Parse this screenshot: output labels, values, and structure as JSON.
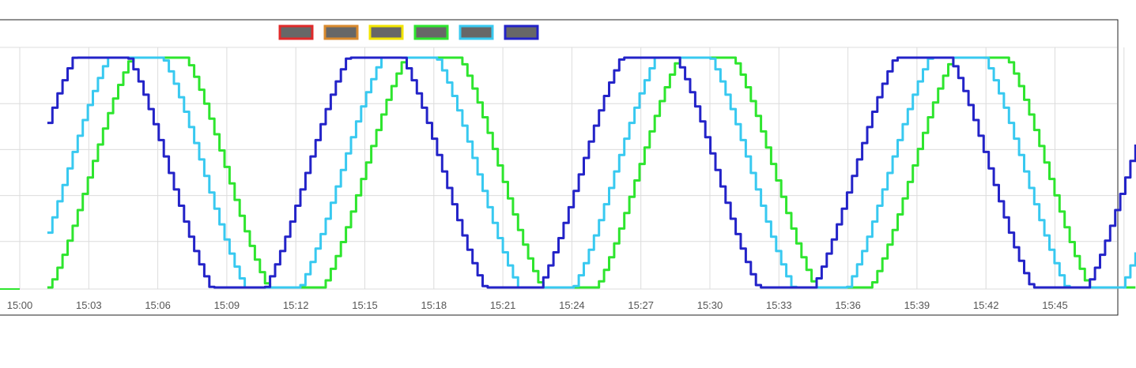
{
  "chart_data": {
    "type": "line",
    "title": "",
    "xlabel": "",
    "ylabel": "",
    "x_range": [
      "15:00",
      "15:48.5"
    ],
    "y_range": [
      0,
      1
    ],
    "grid": true,
    "legend_position": "top-center",
    "legend_swatch_fill": "#676767",
    "x_ticks": [
      "15:00",
      "15:03",
      "15:06",
      "15:09",
      "15:12",
      "15:15",
      "15:18",
      "15:21",
      "15:24",
      "15:27",
      "15:30",
      "15:33",
      "15:36",
      "15:39",
      "15:42",
      "15:45"
    ],
    "series": [
      {
        "color": "#e02a2a",
        "values": []
      },
      {
        "color": "#d98a2e",
        "values": []
      },
      {
        "color": "#f2e400",
        "values": []
      },
      {
        "color": "#2ee52e",
        "start": "15:01.2",
        "end": "15:48.5",
        "period_min": 11.9,
        "peak_times": [
          "15:06.0",
          "15:17.9",
          "15:29.8",
          "15:41.7"
        ],
        "min": 0,
        "max": 1
      },
      {
        "color": "#38c9f0",
        "start": "15:01.2",
        "end": "15:48.5",
        "period_min": 11.9,
        "peak_times": [
          "15:05.0",
          "15:16.9",
          "15:28.8",
          "15:40.7"
        ],
        "min": 0,
        "max": 1
      },
      {
        "color": "#2323c8",
        "start": "15:01.2",
        "end": "15:48.5",
        "period_min": 11.9,
        "peak_times": [
          "15:03.5",
          "15:15.4",
          "15:27.3",
          "15:39.2"
        ],
        "min": 0,
        "max": 1
      }
    ]
  }
}
